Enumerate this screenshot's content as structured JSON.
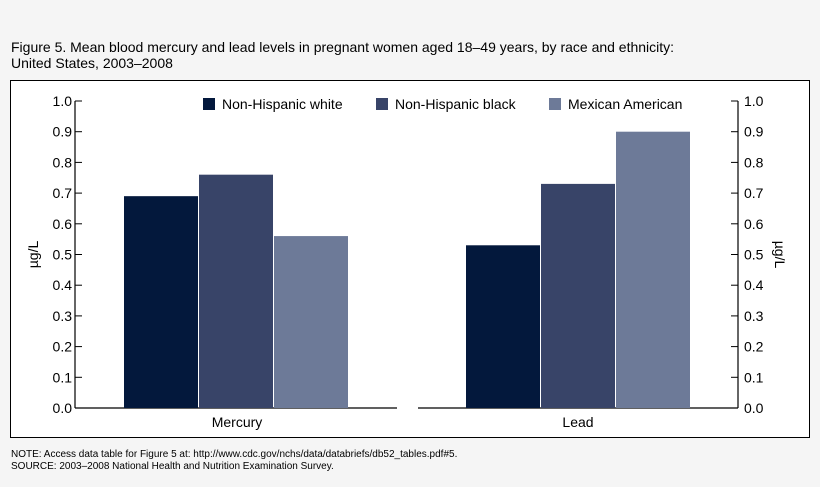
{
  "title_line1": "Figure 5. Mean blood mercury and lead levels in pregnant women aged 18–49 years, by race and ethnicity:",
  "title_line2": "United States, 2003–2008",
  "notes": {
    "note": "NOTE: Access data table for Figure 5 at: http://www.cdc.gov/nchs/data/databriefs/db52_tables.pdf#5.",
    "source": "SOURCE: 2003–2008 National Health and Nutrition Examination Survey."
  },
  "chart_data": {
    "type": "bar",
    "categories": [
      "Mercury",
      "Lead"
    ],
    "series": [
      {
        "name": "Non-Hispanic white",
        "color": "#03183c",
        "values": [
          0.69,
          0.53
        ]
      },
      {
        "name": "Non-Hispanic black",
        "color": "#384468",
        "values": [
          0.76,
          0.73
        ]
      },
      {
        "name": "Mexican American",
        "color": "#6d7a98",
        "values": [
          0.56,
          0.9
        ]
      }
    ],
    "ylabel": "µg/L",
    "ylabel_right": "µg/L",
    "ylim": [
      0,
      1.0
    ],
    "yticks": [
      "0.0",
      "0.1",
      "0.2",
      "0.3",
      "0.4",
      "0.5",
      "0.6",
      "0.7",
      "0.8",
      "0.9",
      "1.0"
    ],
    "legend_position": "top",
    "grid": false
  }
}
